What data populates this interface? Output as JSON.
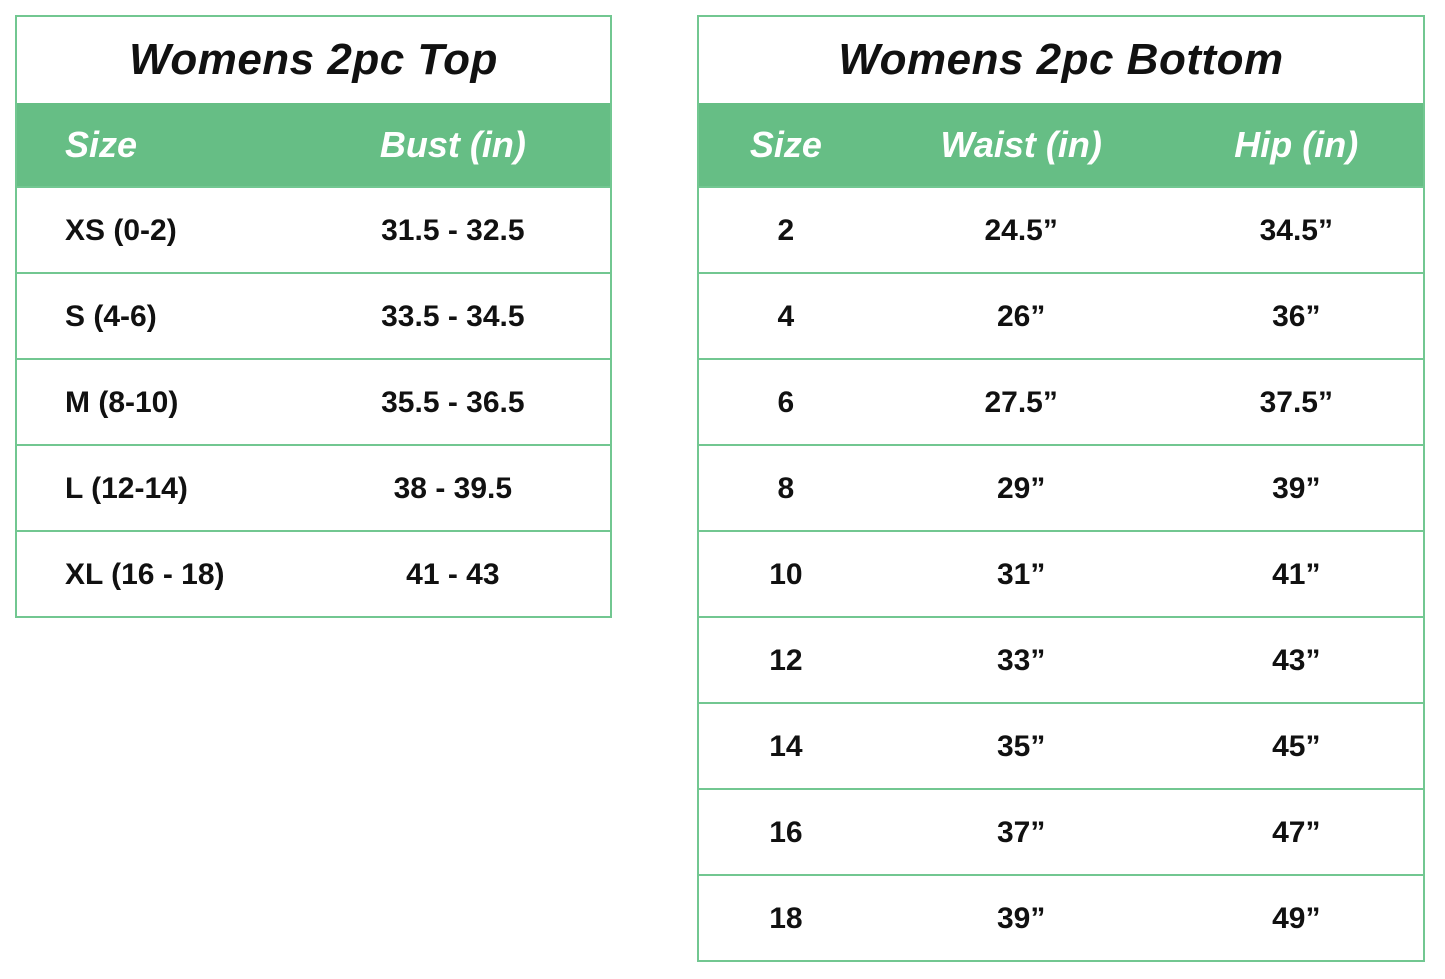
{
  "colors": {
    "header_green": "#66be85",
    "border_green": "#72c791",
    "title_text": "#111111",
    "header_text": "#ffffff",
    "cell_text": "#111111",
    "background": "#ffffff"
  },
  "chart_data": [
    {
      "type": "table",
      "title": "Womens 2pc Top",
      "columns": [
        "Size",
        "Bust (in)"
      ],
      "rows": [
        [
          "XS (0-2)",
          "31.5 - 32.5"
        ],
        [
          "S (4-6)",
          "33.5 - 34.5"
        ],
        [
          "M (8-10)",
          "35.5 - 36.5"
        ],
        [
          "L (12-14)",
          "38 - 39.5"
        ],
        [
          "XL (16 - 18)",
          "41 - 43"
        ]
      ]
    },
    {
      "type": "table",
      "title": "Womens 2pc Bottom",
      "columns": [
        "Size",
        "Waist (in)",
        "Hip (in)"
      ],
      "rows": [
        [
          "2",
          "24.5”",
          "34.5”"
        ],
        [
          "4",
          "26”",
          "36”"
        ],
        [
          "6",
          "27.5”",
          "37.5”"
        ],
        [
          "8",
          "29”",
          "39”"
        ],
        [
          "10",
          "31”",
          "41”"
        ],
        [
          "12",
          "33”",
          "43”"
        ],
        [
          "14",
          "35”",
          "45”"
        ],
        [
          "16",
          "37”",
          "47”"
        ],
        [
          "18",
          "39”",
          "49”"
        ]
      ]
    }
  ]
}
